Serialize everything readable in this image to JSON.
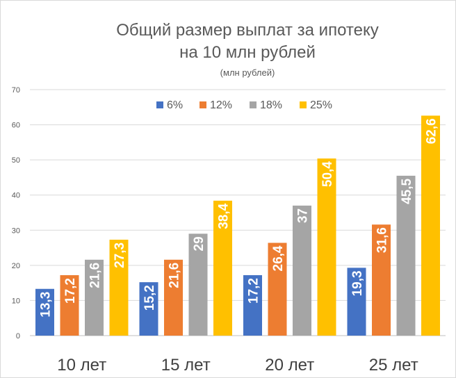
{
  "chart_data": {
    "type": "bar",
    "title_line1": "Общий размер выплат за ипотеку",
    "title_line2": "на 10 млн рублей",
    "subtitle": "(млн рублей)",
    "xlabel": "",
    "ylabel": "",
    "ylim": [
      0,
      70
    ],
    "yticks": [
      "0",
      "10",
      "20",
      "30",
      "40",
      "50",
      "60",
      "70"
    ],
    "grid": true,
    "legend_position": "top",
    "categories": [
      "10 лет",
      "15 лет",
      "20 лет",
      "25 лет"
    ],
    "series": [
      {
        "name": "6%",
        "color": "#4472c4",
        "values": [
          13.3,
          15.2,
          17.2,
          19.3
        ],
        "labels": [
          "13,3",
          "15,2",
          "17,2",
          "19,3"
        ]
      },
      {
        "name": "12%",
        "color": "#ed7d31",
        "values": [
          17.2,
          21.6,
          26.4,
          31.6
        ],
        "labels": [
          "17,2",
          "21,6",
          "26,4",
          "31,6"
        ]
      },
      {
        "name": "18%",
        "color": "#a5a5a5",
        "values": [
          21.6,
          29,
          37,
          45.5
        ],
        "labels": [
          "21,6",
          "29",
          "37",
          "45,5"
        ]
      },
      {
        "name": "25%",
        "color": "#ffc000",
        "values": [
          27.3,
          38.4,
          50.4,
          62.6
        ],
        "labels": [
          "27,3",
          "38,4",
          "50,4",
          "62,6"
        ]
      }
    ]
  }
}
